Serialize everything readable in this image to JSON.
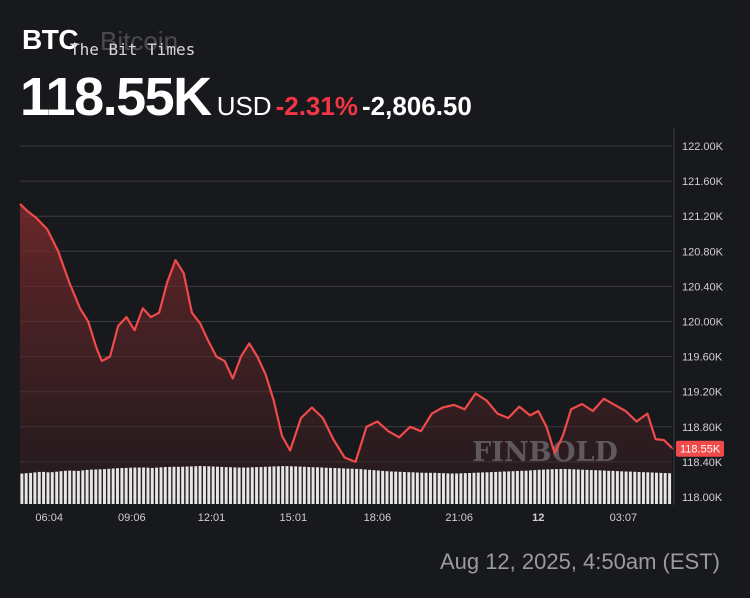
{
  "header": {
    "ticker": "BTC",
    "asset_name": "Bitcoin",
    "watermark": "The Bit Times",
    "price": "118.55K",
    "currency": "USD",
    "change_percent": "-2.31%",
    "change_value": "-2,806.50"
  },
  "footer": {
    "timestamp": "Aug 12, 2025, 4:50am (EST)"
  },
  "chart_watermark": "FINBOLD",
  "colors": {
    "background": "#18191d",
    "line": "#f04a4a",
    "area_top": "#7a2a2c",
    "negative": "#f23645",
    "volume": "#e6e6e6",
    "grid": "#3c3d42"
  },
  "chart_data": {
    "type": "area",
    "ylim": [
      118000,
      122200
    ],
    "y_ticks": [
      "122.00K",
      "121.60K",
      "121.20K",
      "120.80K",
      "120.40K",
      "120.00K",
      "119.60K",
      "119.20K",
      "118.80K",
      "118.40K",
      "118.00K"
    ],
    "y_tick_values": [
      122000,
      121600,
      121200,
      120800,
      120400,
      120000,
      119600,
      119200,
      118800,
      118400,
      118000
    ],
    "x_ticks": [
      "06:04",
      "09:06",
      "12:01",
      "15:01",
      "18:06",
      "21:06",
      "12",
      "03:07"
    ],
    "x_tick_hours": [
      6.07,
      9.1,
      12.02,
      15.02,
      18.1,
      21.1,
      24.0,
      27.12
    ],
    "last_price_label": "118.55K",
    "last_price": 118550,
    "series": [
      {
        "x": [
          5.0,
          5.3,
          5.6,
          6.0,
          6.4,
          6.8,
          7.2,
          7.5,
          7.8,
          8.0,
          8.3,
          8.6,
          8.9,
          9.2,
          9.5,
          9.8,
          10.1,
          10.4,
          10.7,
          11.0,
          11.3,
          11.6,
          11.9,
          12.2,
          12.5,
          12.8,
          13.1,
          13.4,
          13.7,
          14.0,
          14.3,
          14.6,
          14.9,
          15.3,
          15.7,
          16.1,
          16.5,
          16.9,
          17.3,
          17.7,
          18.1,
          18.5,
          18.9,
          19.3,
          19.7,
          20.1,
          20.5,
          20.9,
          21.3,
          21.7,
          22.1,
          22.5,
          22.9,
          23.3,
          23.7,
          24.0,
          24.3,
          24.6,
          24.9,
          25.2,
          25.6,
          26.0,
          26.4,
          26.8,
          27.2,
          27.6,
          28.0,
          28.3,
          28.6,
          28.9
        ],
        "y": [
          121340,
          121250,
          121180,
          121050,
          120800,
          120450,
          120150,
          120000,
          119700,
          119550,
          119600,
          119950,
          120050,
          119900,
          120150,
          120050,
          120100,
          120450,
          120700,
          120550,
          120100,
          119980,
          119780,
          119600,
          119550,
          119350,
          119600,
          119750,
          119600,
          119400,
          119100,
          118700,
          118530,
          118900,
          119020,
          118900,
          118650,
          118450,
          118400,
          118800,
          118860,
          118750,
          118680,
          118800,
          118750,
          118950,
          119020,
          119050,
          119000,
          119180,
          119100,
          118950,
          118900,
          119030,
          118930,
          118980,
          118800,
          118500,
          118700,
          119000,
          119060,
          118980,
          119120,
          119050,
          118980,
          118860,
          118950,
          118660,
          118650,
          118560
        ]
      }
    ],
    "volume": {
      "name": "Volume",
      "values": [
        0.8,
        0.82,
        0.85,
        0.83,
        0.86,
        0.88,
        0.87,
        0.9,
        0.91,
        0.92,
        0.94,
        0.95,
        0.96,
        0.96,
        0.95,
        0.97,
        0.98,
        0.98,
        0.99,
        1.0,
        0.99,
        0.98,
        0.97,
        0.96,
        0.96,
        0.97,
        0.98,
        0.99,
        1.0,
        0.99,
        0.98,
        0.97,
        0.96,
        0.95,
        0.94,
        0.93,
        0.92,
        0.9,
        0.88,
        0.86,
        0.85,
        0.84,
        0.83,
        0.82,
        0.82,
        0.81,
        0.8,
        0.81,
        0.82,
        0.83,
        0.84,
        0.85,
        0.86,
        0.87,
        0.88,
        0.9,
        0.91,
        0.92,
        0.92,
        0.91,
        0.9,
        0.89,
        0.88,
        0.87,
        0.86,
        0.85,
        0.84,
        0.83,
        0.82,
        0.81
      ]
    }
  }
}
